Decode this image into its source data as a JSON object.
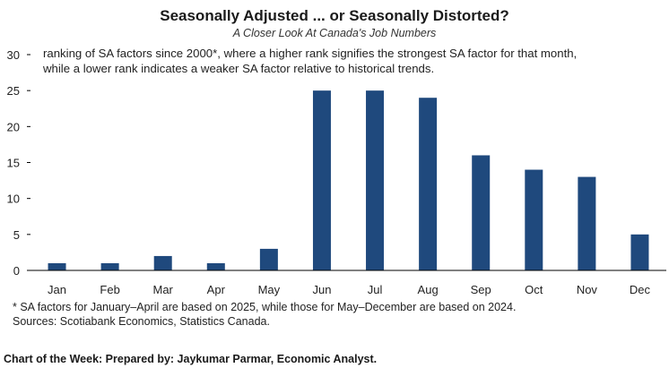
{
  "chart_data": {
    "type": "bar",
    "title": "Seasonally Adjusted ... or Seasonally Distorted?",
    "subtitle": "A Closer Look At Canada's Job Numbers",
    "annotation_lines": [
      "ranking of SA factors since 2000*, where a higher rank signifies the strongest SA factor for that month,",
      "while a lower rank indicates a weaker SA factor relative to historical trends."
    ],
    "categories": [
      "Jan",
      "Feb",
      "Mar",
      "Apr",
      "May",
      "Jun",
      "Jul",
      "Aug",
      "Sep",
      "Oct",
      "Nov",
      "Dec"
    ],
    "values": [
      1,
      1,
      2,
      1,
      3,
      25,
      25,
      24,
      16,
      14,
      13,
      5
    ],
    "ylim": [
      0,
      30
    ],
    "yticks": [
      0,
      5,
      10,
      15,
      20,
      25,
      30
    ],
    "xlabel": "",
    "ylabel": "",
    "bar_color": "#1f497d",
    "notes": [
      "* SA factors for January–April are based on 2025, while those for May–December are based on 2024.",
      "Sources: Scotiabank Economics, Statistics Canada."
    ]
  },
  "footer": "Chart of the Week: Prepared by: Jaykumar Parmar, Economic Analyst."
}
